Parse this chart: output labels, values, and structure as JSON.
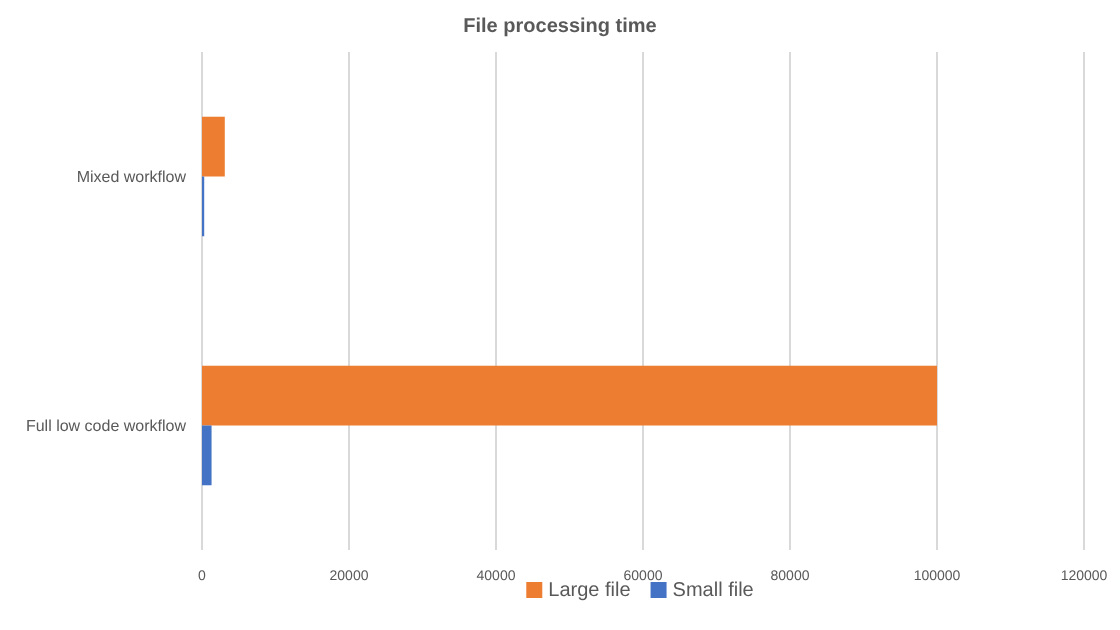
{
  "chart_data": {
    "type": "bar",
    "title": "File processing time",
    "orientation": "horizontal",
    "categories": [
      "Mixed workflow",
      "Full low code workflow"
    ],
    "series": [
      {
        "name": "Large file",
        "color": "#ed7d31",
        "values": [
          3100,
          100000
        ]
      },
      {
        "name": "Small file",
        "color": "#4472c4",
        "values": [
          300,
          1300
        ]
      }
    ],
    "xlim": [
      0,
      120000
    ],
    "xticks": [
      0,
      20000,
      40000,
      60000,
      80000,
      100000,
      120000
    ],
    "grid": "x",
    "legend": "bottom"
  }
}
